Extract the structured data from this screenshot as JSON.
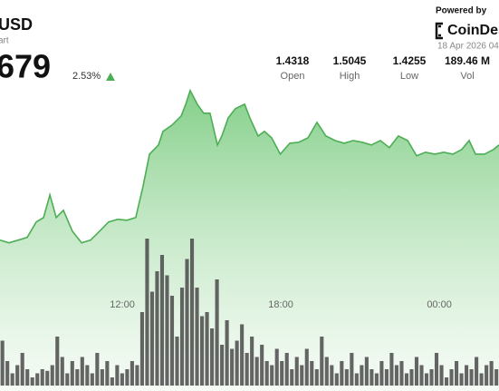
{
  "header": {
    "pair": "USD",
    "subtitle": "art",
    "price": "679",
    "change": "2.53%",
    "stats": [
      {
        "value": "1.4318",
        "label": "Open"
      },
      {
        "value": "1.5045",
        "label": "High"
      },
      {
        "value": "1.4255",
        "label": "Low"
      },
      {
        "value": "189.46 M",
        "label": "Vol"
      }
    ],
    "powered_by": "Powered by",
    "brand": "CoinDes",
    "date": "18 Apr 2026 04"
  },
  "chart_data": {
    "type": "area",
    "x": [
      7.37,
      7.71,
      8.06,
      8.4,
      8.74,
      9.02,
      9.26,
      9.5,
      9.77,
      10.11,
      10.46,
      10.8,
      11.14,
      11.48,
      11.83,
      12.17,
      12.51,
      12.79,
      13.03,
      13.37,
      13.54,
      13.88,
      14.23,
      14.4,
      14.57,
      14.84,
      15.08,
      15.32,
      15.6,
      15.77,
      16.01,
      16.28,
      16.63,
      16.83,
      17.14,
      17.38,
      17.65,
      17.98,
      18.34,
      18.68,
      19.03,
      19.37,
      19.71,
      20.05,
      20.4,
      20.74,
      21.08,
      21.43,
      21.77,
      22.11,
      22.45,
      22.8,
      23.14,
      23.48,
      23.83,
      24.17,
      24.51,
      24.85,
      25.13,
      25.37,
      25.71,
      26.05,
      26.26
    ],
    "series": [
      {
        "color": "#4cae55",
        "values": [
          1.4278,
          1.4264,
          1.4278,
          1.4292,
          1.4371,
          1.4394,
          1.451,
          1.4394,
          1.4431,
          1.4324,
          1.4264,
          1.4278,
          1.4324,
          1.4371,
          1.4385,
          1.438,
          1.4394,
          1.4557,
          1.4719,
          1.4766,
          1.4836,
          1.4868,
          1.4915,
          1.4975,
          1.5045,
          1.4975,
          1.4929,
          1.4929,
          1.4766,
          1.4812,
          1.4905,
          1.4952,
          1.4975,
          1.4905,
          1.4812,
          1.4836,
          1.4803,
          1.4719,
          1.4775,
          1.478,
          1.4803,
          1.4882,
          1.4812,
          1.4789,
          1.4775,
          1.4789,
          1.478,
          1.4766,
          1.4789,
          1.4752,
          1.4812,
          1.4789,
          1.471,
          1.4729,
          1.4719,
          1.4729,
          1.4719,
          1.4743,
          1.4789,
          1.4719,
          1.4719,
          1.4743,
          1.4766
        ]
      }
    ],
    "xlim": [
      7.37,
      26.26
    ],
    "xticks": [
      {
        "value": 12,
        "label": "12:00"
      },
      {
        "value": 18,
        "label": "18:00"
      },
      {
        "value": 24,
        "label": "00:00"
      }
    ],
    "ylim": [
      1.41,
      1.51
    ],
    "volume": {
      "color": "#4a4a4a",
      "values": [
        55,
        30,
        15,
        25,
        40,
        20,
        10,
        15,
        20,
        18,
        25,
        60,
        35,
        15,
        30,
        20,
        35,
        25,
        15,
        40,
        20,
        30,
        10,
        25,
        15,
        20,
        30,
        25,
        90,
        180,
        115,
        140,
        160,
        135,
        110,
        60,
        120,
        155,
        180,
        120,
        85,
        90,
        70,
        130,
        50,
        80,
        45,
        55,
        75,
        40,
        60,
        35,
        50,
        30,
        25,
        45,
        30,
        40,
        20,
        35,
        25,
        45,
        30,
        20,
        60,
        35,
        25,
        15,
        30,
        20,
        40,
        15,
        25,
        35,
        20,
        15,
        30,
        20,
        40,
        25,
        30,
        15,
        20,
        35,
        25,
        15,
        20,
        40,
        25,
        10,
        20,
        30,
        15,
        25,
        20,
        35,
        15,
        25,
        30,
        20
      ],
      "vlim": [
        0,
        200
      ]
    }
  }
}
